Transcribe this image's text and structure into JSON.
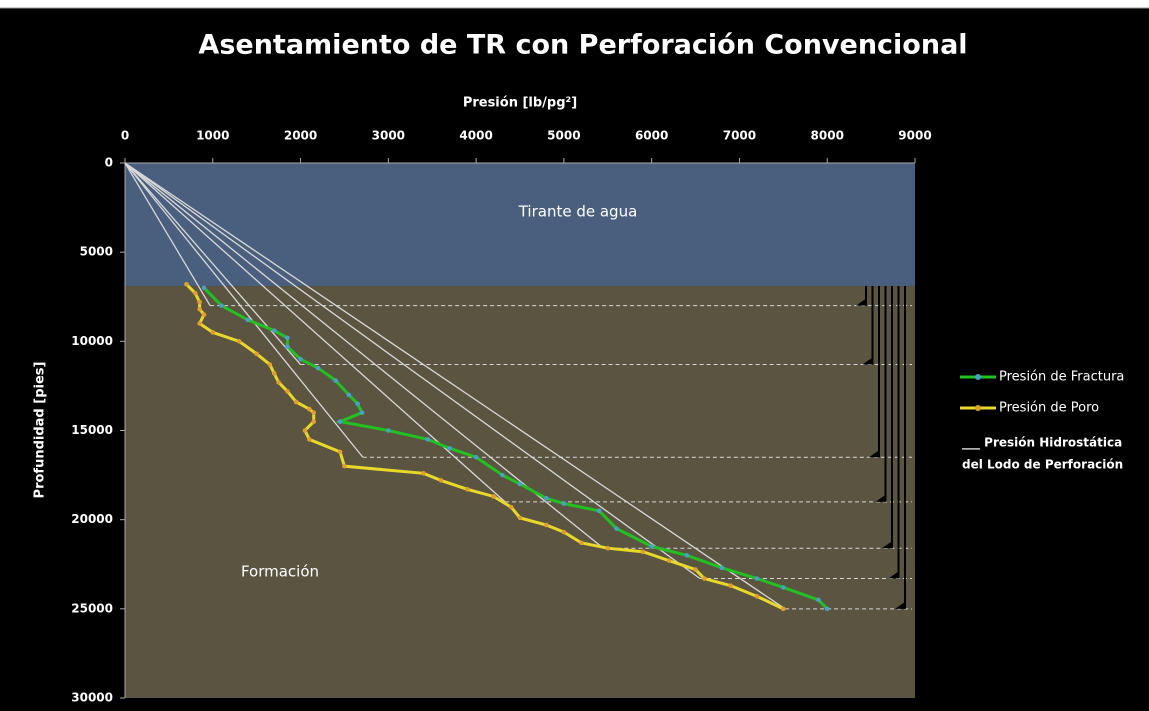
{
  "chart_data": {
    "type": "line",
    "title": "Asentamiento de TR con Perforación Convencional",
    "x_label": "Presión [lb/pg²]",
    "y_label": "Profundidad [pies]",
    "xlim": [
      0,
      9000
    ],
    "xticks": [
      0,
      1000,
      2000,
      3000,
      4000,
      5000,
      6000,
      7000,
      8000,
      9000
    ],
    "ylim": [
      0,
      30000
    ],
    "yticks": [
      0,
      5000,
      10000,
      15000,
      20000,
      25000,
      30000
    ],
    "y_inverted": true,
    "water_depth": 6900,
    "regions": [
      {
        "label": "Tirante de agua",
        "color": "#4a5f7e"
      },
      {
        "label": "Formación",
        "color": "#5a5441"
      }
    ],
    "series": [
      {
        "name": "Presión de Fractura",
        "color": "#22c022",
        "marker_color": "#4aa0c8",
        "x": [
          900,
          1100,
          1400,
          1700,
          1850,
          1850,
          2000,
          2200,
          2400,
          2550,
          2650,
          2700,
          2450,
          3000,
          3450,
          3700,
          4000,
          4300,
          4500,
          4800,
          5000,
          5400,
          5600,
          6000,
          6400,
          6800,
          7200,
          7500,
          7900,
          8000
        ],
        "values": [
          7000,
          8000,
          8800,
          9400,
          9800,
          10300,
          11000,
          11500,
          12200,
          13000,
          13500,
          14000,
          14500,
          15000,
          15500,
          16000,
          16500,
          17500,
          18000,
          18800,
          19100,
          19500,
          20500,
          21500,
          22000,
          22700,
          23300,
          23800,
          24500,
          25000
        ]
      },
      {
        "name": "Presión de Poro",
        "color": "#e8d82a",
        "marker_color": "#e0a030",
        "x": [
          700,
          800,
          850,
          850,
          900,
          850,
          1000,
          1300,
          1500,
          1650,
          1700,
          1750,
          1850,
          1950,
          2100,
          2150,
          2150,
          2050,
          2100,
          2450,
          2500,
          3400,
          3600,
          3900,
          4200,
          4400,
          4500,
          4800,
          5000,
          5200,
          5500,
          5900,
          6200,
          6500,
          6600,
          6900,
          7200,
          7500
        ],
        "values": [
          6800,
          7300,
          7800,
          8200,
          8500,
          9000,
          9500,
          10000,
          10700,
          11300,
          11800,
          12300,
          12800,
          13400,
          13800,
          14000,
          14500,
          15000,
          15500,
          16200,
          17000,
          17400,
          17800,
          18300,
          18700,
          19300,
          19900,
          20300,
          20700,
          21300,
          21600,
          21800,
          22300,
          22800,
          23300,
          23700,
          24300,
          25000
        ]
      }
    ],
    "mud_lines": {
      "color": "#d8d8d8",
      "x": [
        970,
        2000,
        2710,
        4330,
        5450,
        6550,
        7520
      ],
      "values": [
        8000,
        11300,
        16500,
        19000,
        21600,
        23300,
        25000
      ]
    },
    "legend_note": [
      "___ Presión Hidrostática",
      "del Lodo de Perforación"
    ]
  }
}
